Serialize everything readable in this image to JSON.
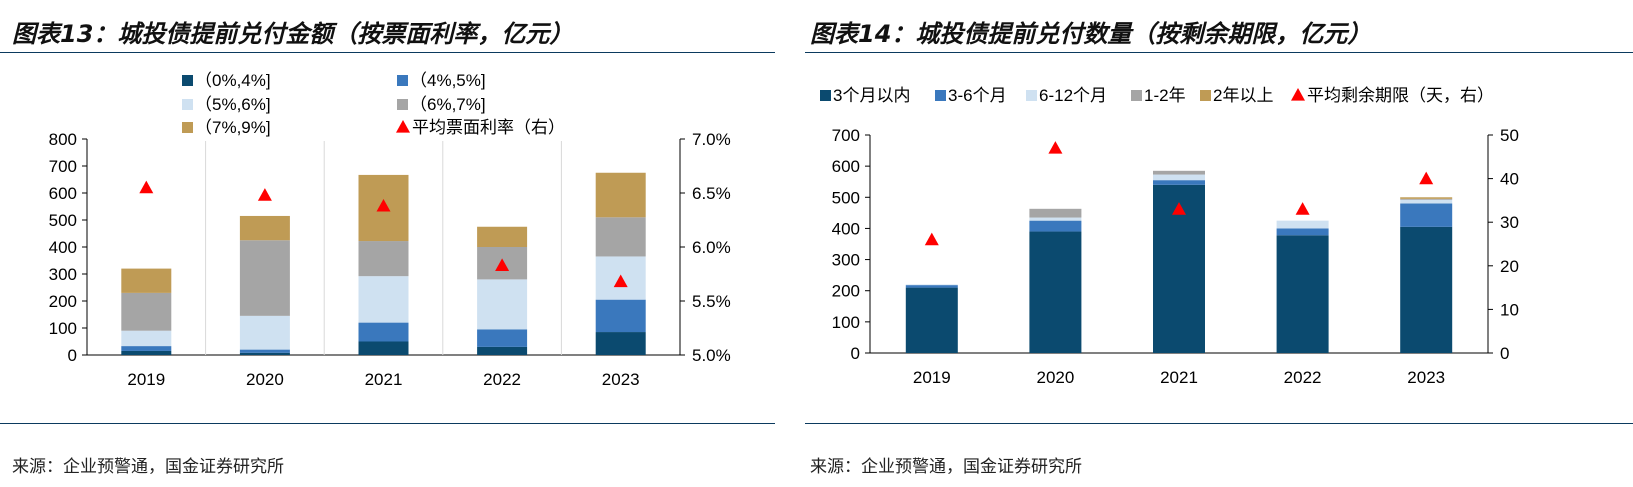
{
  "left": {
    "title": "图表13：城投债提前兑付金额（按票面利率，亿元）",
    "source": "来源：企业预警通，国金证券研究所",
    "chart_data": {
      "type": "bar",
      "stacked": true,
      "categories": [
        "2019",
        "2020",
        "2021",
        "2022",
        "2023"
      ],
      "series": [
        {
          "name": "（0%,4%]",
          "color": "#0b4a6f",
          "values": [
            15,
            8,
            50,
            30,
            85
          ]
        },
        {
          "name": "（4%,5%]",
          "color": "#3a78bd",
          "values": [
            18,
            12,
            70,
            65,
            120
          ]
        },
        {
          "name": "（5%,6%]",
          "color": "#cfe1f1",
          "values": [
            57,
            125,
            172,
            185,
            160
          ]
        },
        {
          "name": "（6%,7%]",
          "color": "#a5a5a5",
          "values": [
            140,
            280,
            130,
            120,
            145
          ]
        },
        {
          "name": "（7%,9%]",
          "color": "#bf9b55",
          "values": [
            90,
            90,
            245,
            75,
            165
          ]
        }
      ],
      "line_series": {
        "name": "平均票面利率（右）",
        "marker": "triangle",
        "color": "#ff0000",
        "values": [
          6.55,
          6.48,
          6.38,
          5.83,
          5.68
        ]
      },
      "ylim": [
        0,
        800
      ],
      "y_ticks": [
        "0",
        "100",
        "200",
        "300",
        "400",
        "500",
        "600",
        "700",
        "800"
      ],
      "y2lim": [
        5.0,
        7.0
      ],
      "y2_ticks": [
        "5.0%",
        "5.5%",
        "6.0%",
        "6.5%",
        "7.0%"
      ],
      "grid": "vertical separators between categories",
      "legend": "top"
    }
  },
  "right": {
    "title": "图表14：城投债提前兑付数量（按剩余期限，亿元）",
    "source": "来源：企业预警通，国金证券研究所",
    "chart_data": {
      "type": "bar",
      "stacked": true,
      "categories": [
        "2019",
        "2020",
        "2021",
        "2022",
        "2023"
      ],
      "series": [
        {
          "name": "3个月以内",
          "color": "#0b4a6f",
          "values": [
            210,
            390,
            540,
            378,
            405
          ]
        },
        {
          "name": "3-6个月",
          "color": "#3a78bd",
          "values": [
            8,
            35,
            15,
            22,
            75
          ]
        },
        {
          "name": "6-12个月",
          "color": "#cfe1f1",
          "values": [
            2,
            10,
            18,
            25,
            12
          ]
        },
        {
          "name": "1-2年",
          "color": "#a5a5a5",
          "values": [
            0,
            28,
            12,
            0,
            3
          ]
        },
        {
          "name": "2年以上",
          "color": "#bf9b55",
          "values": [
            0,
            0,
            0,
            0,
            5
          ]
        }
      ],
      "line_series": {
        "name": "平均剩余期限（天，右）",
        "marker": "triangle",
        "color": "#ff0000",
        "values": [
          26,
          47,
          33,
          33,
          40
        ]
      },
      "ylim": [
        0,
        700
      ],
      "y_ticks": [
        "0",
        "100",
        "200",
        "300",
        "400",
        "500",
        "600",
        "700"
      ],
      "y2lim": [
        0,
        50
      ],
      "y2_ticks": [
        "0",
        "10",
        "20",
        "30",
        "40",
        "50"
      ],
      "grid": "none",
      "legend": "top"
    }
  }
}
